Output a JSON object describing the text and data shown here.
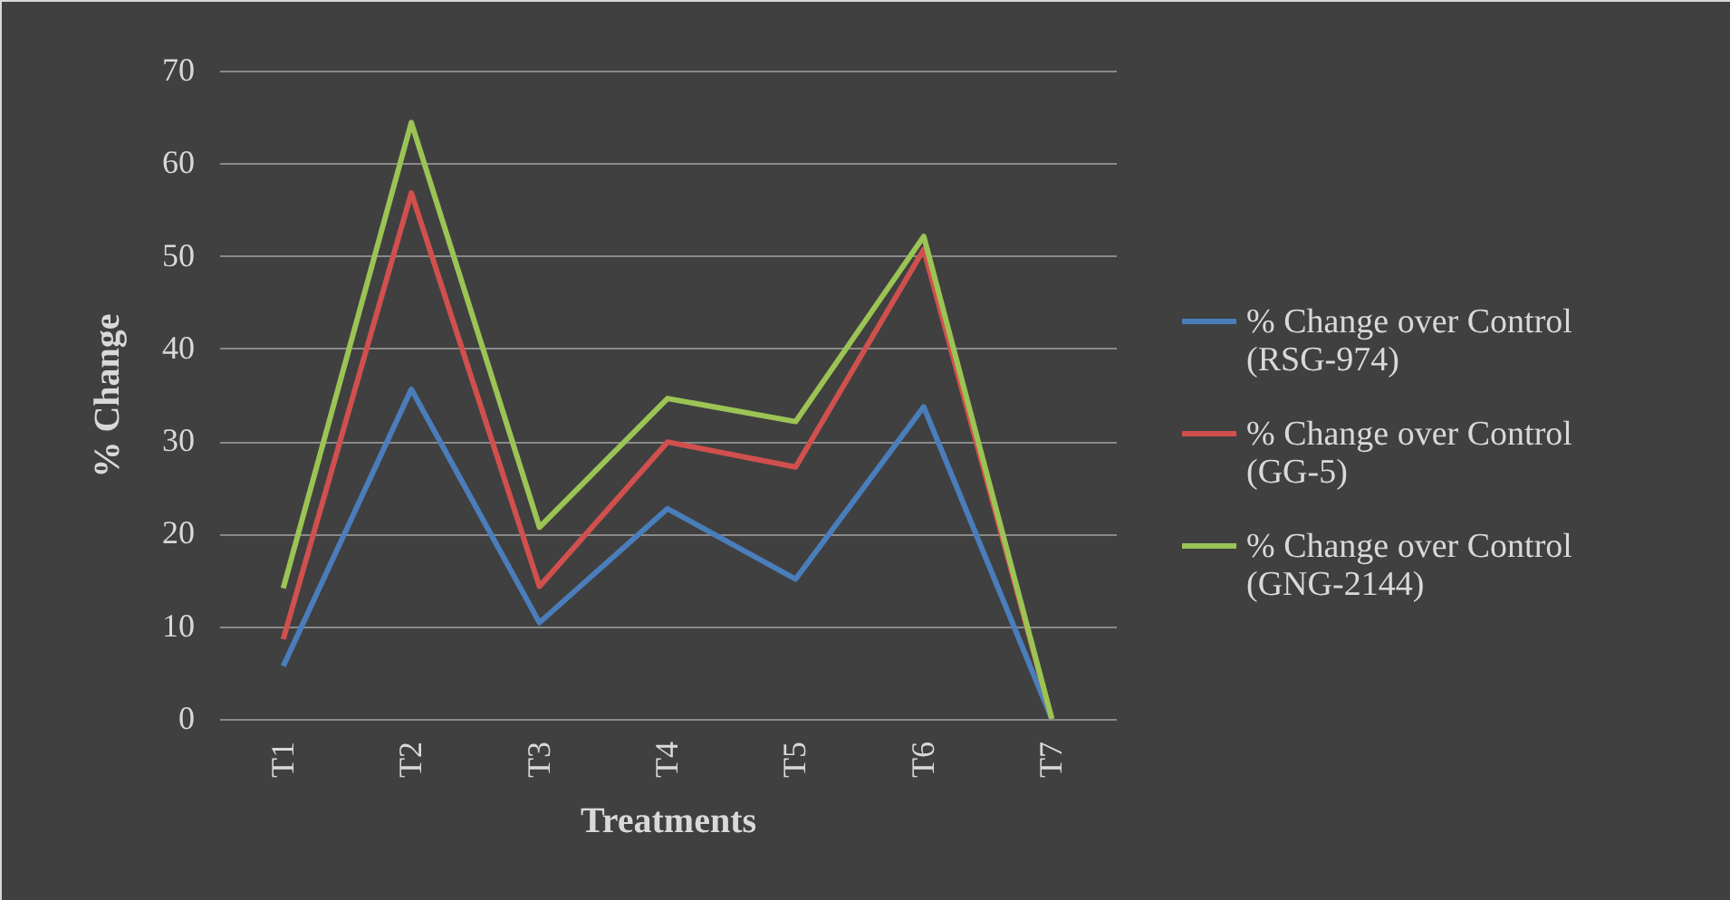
{
  "chart_data": {
    "type": "line",
    "xlabel": "Treatments",
    "ylabel": "% Change",
    "categories": [
      "T1",
      "T2",
      "T3",
      "T4",
      "T5",
      "T6",
      "T7"
    ],
    "series": [
      {
        "name": "% Change over Control (RSG-974)",
        "color": "#4a7ebb",
        "values": [
          5.7,
          35.6,
          10.4,
          22.7,
          15.1,
          33.7,
          0
        ]
      },
      {
        "name": "% Change over Control (GG-5)",
        "color": "#d0504d",
        "values": [
          8.6,
          56.8,
          14.3,
          29.9,
          27.2,
          50.7,
          0
        ]
      },
      {
        "name": "% Change over Control (GNG-2144)",
        "color": "#9bc454",
        "values": [
          14.1,
          64.4,
          20.7,
          34.6,
          32.1,
          52.1,
          0
        ]
      }
    ],
    "ylim": [
      0,
      70
    ],
    "yticks": [
      0,
      10,
      20,
      30,
      40,
      50,
      60,
      70
    ],
    "grid": "y",
    "legend": "right",
    "marker": "none",
    "line_style": "solid"
  }
}
